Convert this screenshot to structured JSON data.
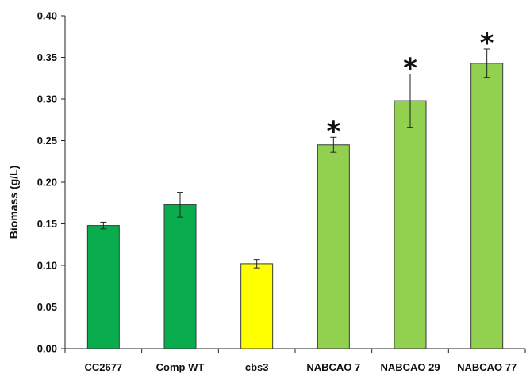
{
  "chart_data": {
    "type": "bar",
    "ylabel": "Biomass (g/L)",
    "xlabel": "",
    "ylim": [
      0,
      0.4
    ],
    "y_ticks": [
      "0.00",
      "0.05",
      "0.10",
      "0.15",
      "0.20",
      "0.25",
      "0.30",
      "0.35",
      "0.40"
    ],
    "grid": false,
    "categories": [
      "CC2677",
      "Comp WT",
      "cbs3",
      "NABCAO 7",
      "NABCAO 29",
      "NABCAO 77"
    ],
    "values": [
      0.148,
      0.173,
      0.102,
      0.245,
      0.298,
      0.343
    ],
    "errors": [
      0.004,
      0.015,
      0.005,
      0.009,
      0.032,
      0.017
    ],
    "bar_colors": [
      "#0aad4d",
      "#0aad4d",
      "#ffff00",
      "#92d050",
      "#92d050",
      "#92d050"
    ],
    "bar_edge_color": "#3a3a3a",
    "significance_marker": "*",
    "significant": [
      false,
      false,
      false,
      true,
      true,
      true
    ]
  }
}
